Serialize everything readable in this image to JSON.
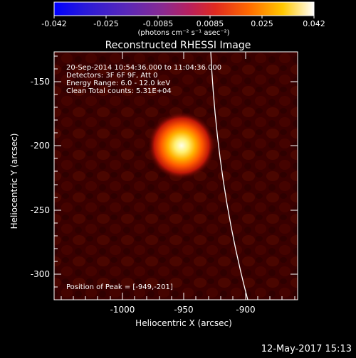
{
  "colorbar": {
    "ticks": [
      "-0.042",
      "-0.025",
      "-0.0085",
      "0.0085",
      "0.025",
      "0.042"
    ],
    "units": "(photons cm⁻² s⁻¹ asec⁻²)",
    "colors": [
      "#0000ff",
      "#3a1fd0",
      "#6a2ab0",
      "#9a2a88",
      "#c8205a",
      "#e83020",
      "#ff7a00",
      "#ffc600",
      "#ffffff"
    ]
  },
  "title": "Reconstructed RHESSI Image",
  "info": {
    "line1": "20-Sep-2014 10:54:36.000 to 11:04:36.000",
    "line2": "Detectors: 3F 6F 9F, Att 0",
    "line3": "Energy Range: 6.0 - 12.0 keV",
    "line4": "Clean    Total counts: 5.31E+04"
  },
  "peak_label": "Position of Peak = [-949,-201]",
  "axes": {
    "xlabel": "Heliocentric X (arcsec)",
    "ylabel": "Heliocentric Y (arcsec)",
    "xticks": [
      "-1000",
      "-950",
      "-900"
    ],
    "yticks": [
      "-150",
      "-200",
      "-250",
      "-300"
    ]
  },
  "timestamp": "12-May-2017 15:13"
}
